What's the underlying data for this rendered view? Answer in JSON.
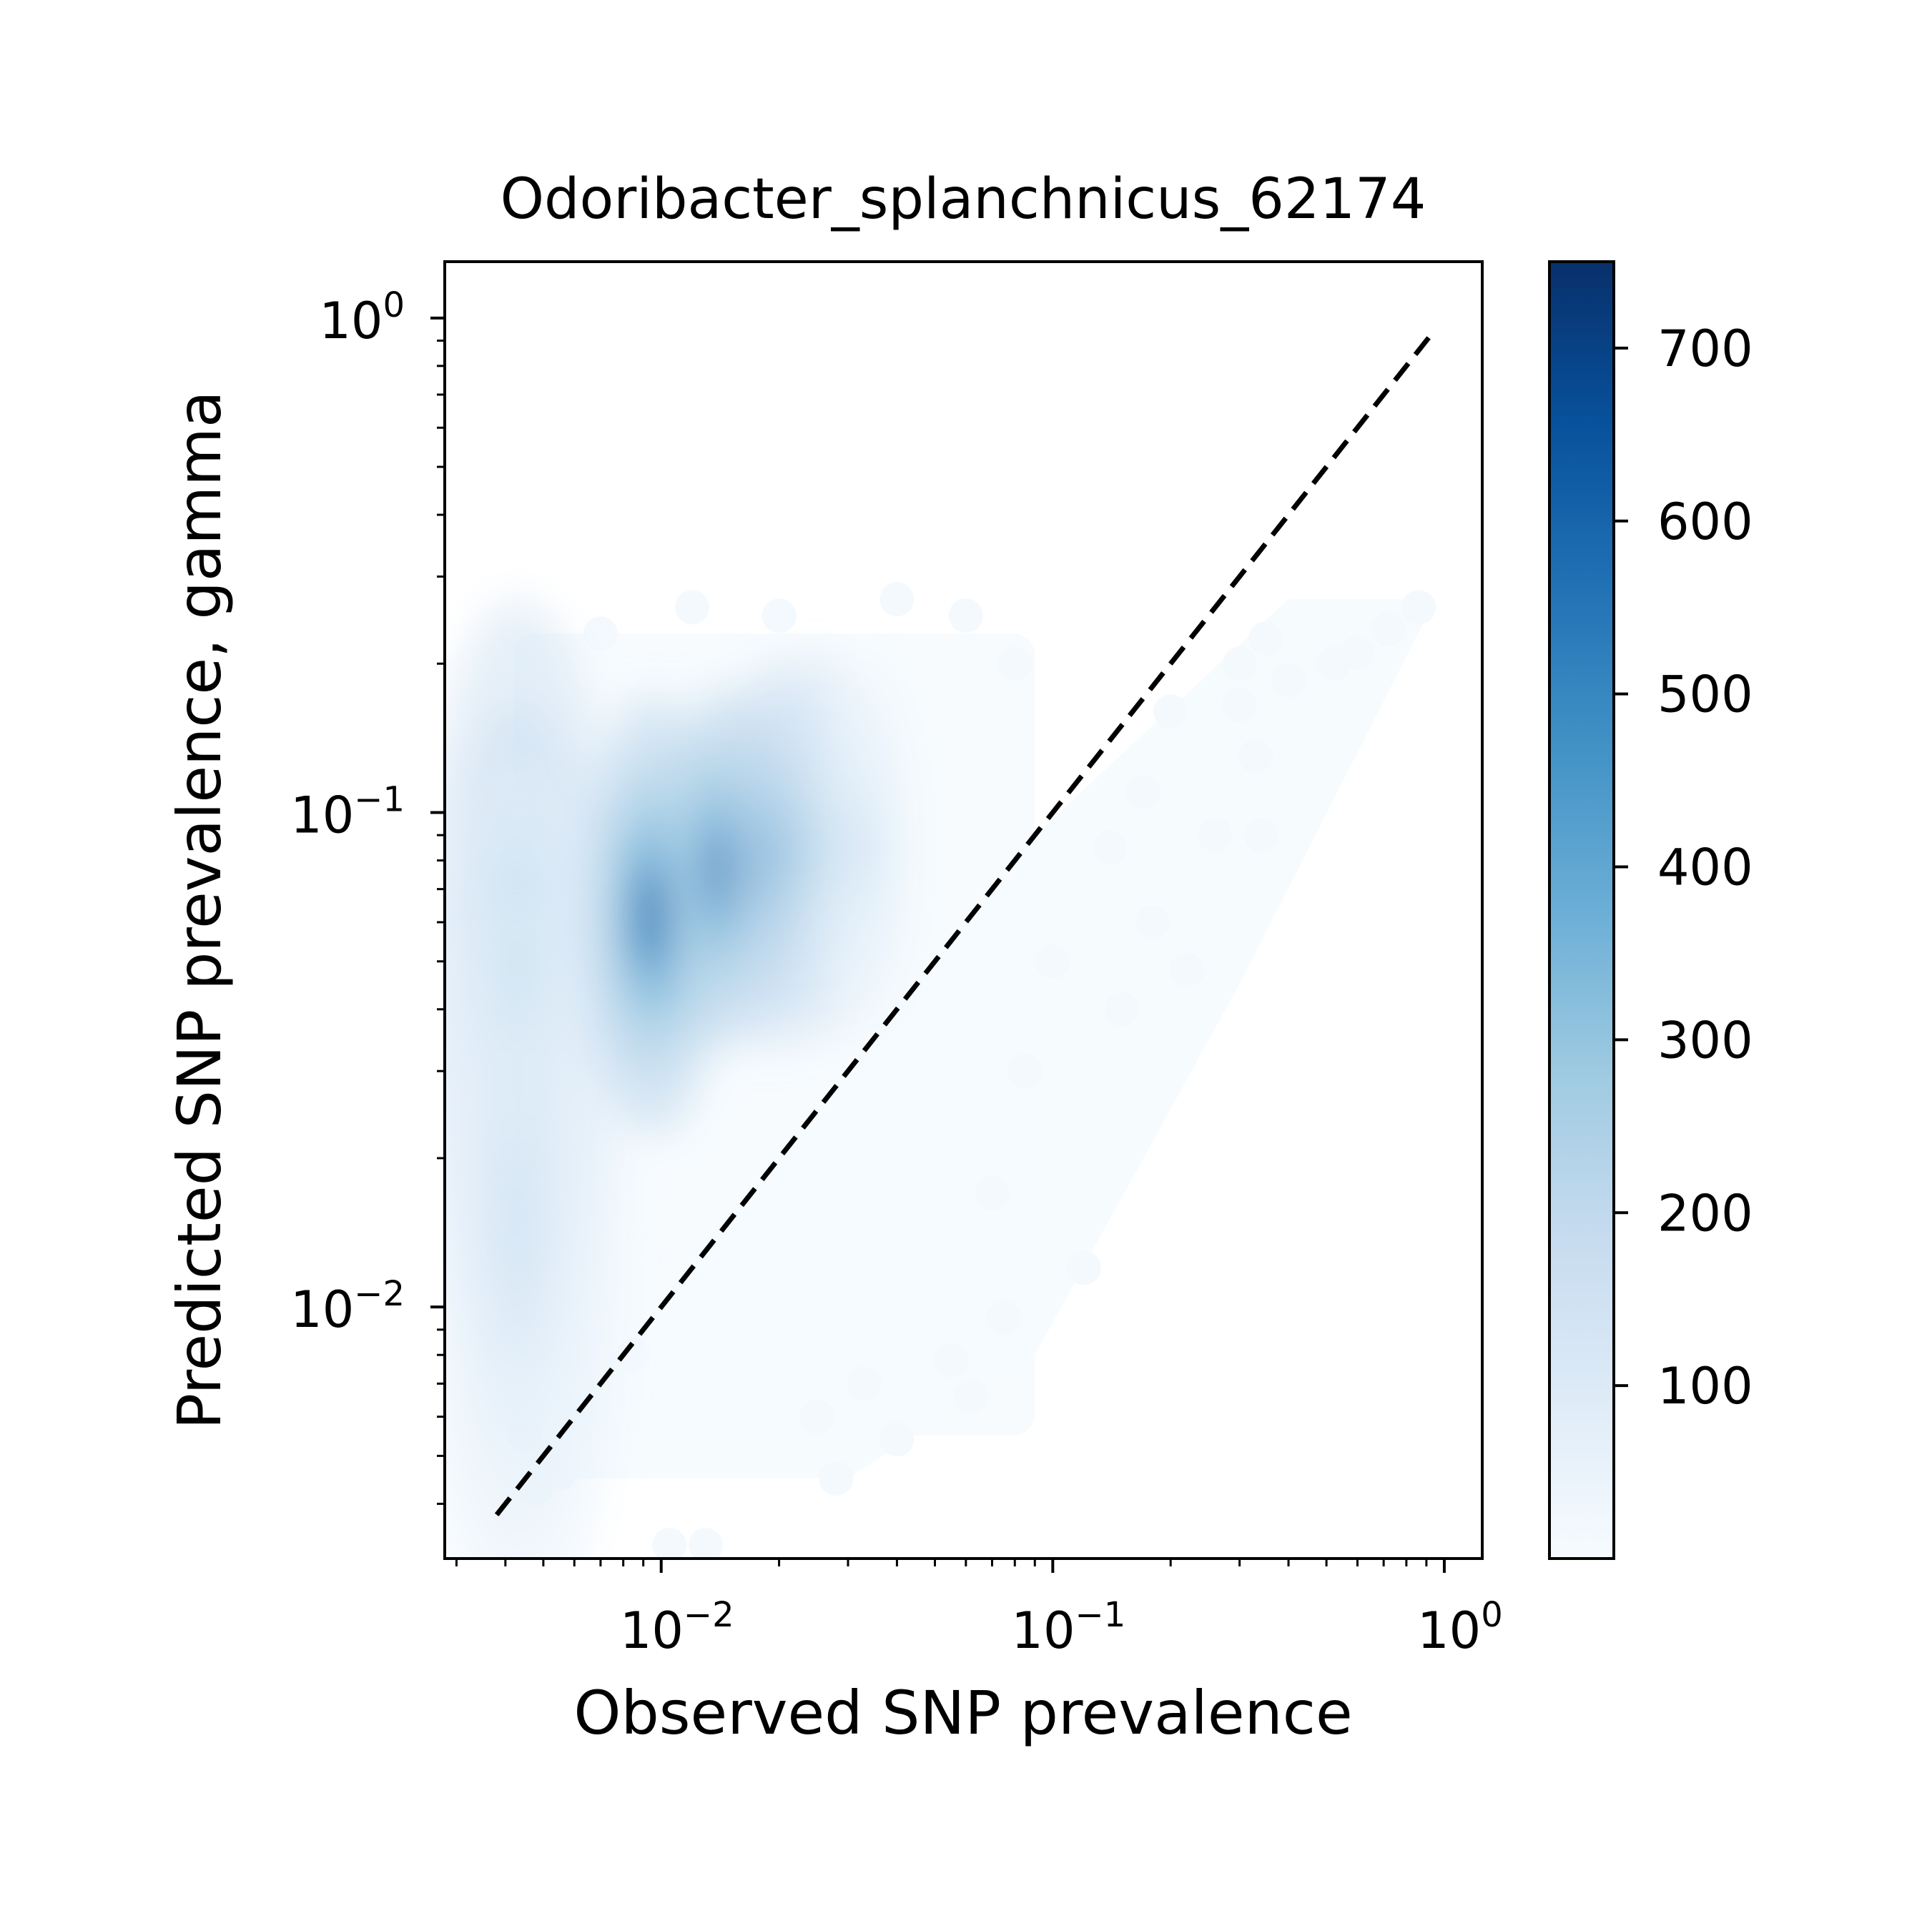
{
  "chart_data": {
    "type": "heatmap",
    "title": "Odoribacter_splanchnicus_62174",
    "xlabel": "Observed SNP prevalence",
    "ylabel": "Predicted SNP prevalence, gamma",
    "x_scale": "log",
    "y_scale": "log",
    "xlim": [
      0.0028,
      1.25
    ],
    "ylim": [
      0.0031,
      1.3
    ],
    "x_major_ticks": [
      {
        "value": 0.01,
        "base": "10",
        "exp": "−2"
      },
      {
        "value": 0.1,
        "base": "10",
        "exp": "−1"
      },
      {
        "value": 1,
        "base": "10",
        "exp": "0"
      }
    ],
    "y_major_ticks": [
      {
        "value": 0.01,
        "base": "10",
        "exp": "−2"
      },
      {
        "value": 0.1,
        "base": "10",
        "exp": "−1"
      },
      {
        "value": 1,
        "base": "10",
        "exp": "0"
      }
    ],
    "reference_line": {
      "style": "dashed",
      "color": "#000000",
      "x": [
        0.0038,
        0.95
      ],
      "y": [
        0.0038,
        0.95
      ]
    },
    "colormap": "Blues",
    "colorbar": {
      "min": 0,
      "max": 750,
      "ticks": [
        {
          "value": 100,
          "label": "100"
        },
        {
          "value": 200,
          "label": "200"
        },
        {
          "value": 300,
          "label": "300"
        },
        {
          "value": 400,
          "label": "400"
        },
        {
          "value": 500,
          "label": "500"
        },
        {
          "value": 600,
          "label": "600"
        },
        {
          "value": 700,
          "label": "700"
        }
      ]
    },
    "density_clusters": [
      {
        "x": 0.0043,
        "y": 0.045,
        "sx": 0.1,
        "sy": 0.3,
        "density": 470
      },
      {
        "x": 0.0043,
        "y": 0.015,
        "sx": 0.1,
        "sy": 0.35,
        "density": 170
      },
      {
        "x": 0.0095,
        "y": 0.062,
        "sx": 0.07,
        "sy": 0.17,
        "density": 720
      },
      {
        "x": 0.0145,
        "y": 0.077,
        "sx": 0.06,
        "sy": 0.14,
        "density": 750
      },
      {
        "x": 0.0195,
        "y": 0.082,
        "sx": 0.05,
        "sy": 0.15,
        "density": 620
      },
      {
        "x": 0.025,
        "y": 0.085,
        "sx": 0.05,
        "sy": 0.15,
        "density": 440
      },
      {
        "x": 0.032,
        "y": 0.085,
        "sx": 0.05,
        "sy": 0.14,
        "density": 180
      }
    ],
    "sparse_points": [
      [
        0.86,
        0.26
      ],
      [
        0.72,
        0.235
      ],
      [
        0.6,
        0.21
      ],
      [
        0.52,
        0.2
      ],
      [
        0.35,
        0.225
      ],
      [
        0.3,
        0.2
      ],
      [
        0.4,
        0.185
      ],
      [
        0.3,
        0.165
      ],
      [
        0.33,
        0.13
      ],
      [
        0.26,
        0.09
      ],
      [
        0.34,
        0.09
      ],
      [
        0.2,
        0.16
      ],
      [
        0.17,
        0.11
      ],
      [
        0.14,
        0.085
      ],
      [
        0.22,
        0.048
      ],
      [
        0.15,
        0.04
      ],
      [
        0.12,
        0.012
      ],
      [
        0.075,
        0.0095
      ],
      [
        0.055,
        0.0078
      ],
      [
        0.062,
        0.0066
      ],
      [
        0.04,
        0.0054
      ],
      [
        0.028,
        0.0045
      ],
      [
        0.013,
        0.0033
      ],
      [
        0.0105,
        0.0033
      ],
      [
        0.0055,
        0.0046
      ],
      [
        0.0048,
        0.0043
      ],
      [
        0.0085,
        0.008
      ],
      [
        0.0045,
        0.0055
      ],
      [
        0.033,
        0.007
      ],
      [
        0.025,
        0.006
      ],
      [
        0.08,
        0.2
      ],
      [
        0.06,
        0.25
      ],
      [
        0.04,
        0.27
      ],
      [
        0.02,
        0.25
      ],
      [
        0.012,
        0.26
      ],
      [
        0.007,
        0.23
      ],
      [
        0.18,
        0.06
      ],
      [
        0.1,
        0.05
      ],
      [
        0.085,
        0.03
      ],
      [
        0.07,
        0.017
      ]
    ]
  }
}
